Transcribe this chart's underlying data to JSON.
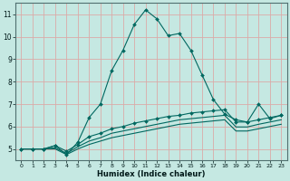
{
  "xlabel": "Humidex (Indice chaleur)",
  "bg_color": "#c5e8e2",
  "grid_color": "#dbaaa8",
  "line_color": "#006860",
  "xlim_min": -0.5,
  "xlim_max": 23.5,
  "ylim_min": 4.5,
  "ylim_max": 11.5,
  "yticks": [
    5,
    6,
    7,
    8,
    9,
    10,
    11
  ],
  "xticks": [
    0,
    1,
    2,
    3,
    4,
    5,
    6,
    7,
    8,
    9,
    10,
    11,
    12,
    13,
    14,
    15,
    16,
    17,
    18,
    19,
    20,
    21,
    22,
    23
  ],
  "line_max": [
    5.0,
    5.0,
    5.0,
    5.15,
    4.75,
    5.3,
    6.4,
    7.0,
    8.5,
    9.4,
    10.55,
    11.2,
    10.8,
    10.05,
    10.15,
    9.4,
    8.3,
    7.2,
    6.55,
    6.3,
    6.2,
    7.0,
    6.35,
    6.5
  ],
  "line_upper": [
    5.0,
    5.0,
    5.0,
    5.15,
    4.9,
    5.2,
    5.55,
    5.7,
    5.9,
    6.0,
    6.15,
    6.25,
    6.35,
    6.45,
    6.5,
    6.6,
    6.65,
    6.7,
    6.75,
    6.2,
    6.2,
    6.3,
    6.4,
    6.5
  ],
  "line_lower": [
    5.0,
    5.0,
    5.0,
    5.05,
    4.8,
    5.1,
    5.35,
    5.5,
    5.7,
    5.8,
    5.9,
    6.0,
    6.1,
    6.2,
    6.3,
    6.35,
    6.4,
    6.45,
    6.5,
    5.98,
    5.98,
    6.1,
    6.2,
    6.3
  ],
  "line_min": [
    5.0,
    5.0,
    5.0,
    5.0,
    4.75,
    5.0,
    5.2,
    5.35,
    5.5,
    5.6,
    5.7,
    5.8,
    5.9,
    6.0,
    6.1,
    6.15,
    6.2,
    6.25,
    6.3,
    5.8,
    5.8,
    5.9,
    6.0,
    6.1
  ]
}
